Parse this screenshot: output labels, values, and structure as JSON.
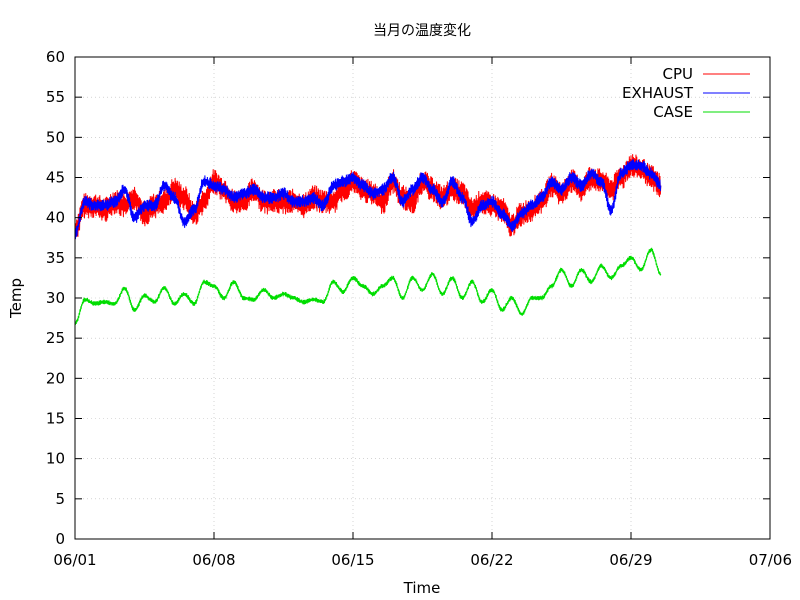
{
  "chart_data": {
    "type": "line",
    "title": "当月の温度変化",
    "xlabel": "Time",
    "ylabel": "Temp",
    "xlim": [
      "2024-06-01",
      "2024-07-06"
    ],
    "ylim": [
      0,
      60
    ],
    "x_ticks": [
      {
        "date": "2024-06-01",
        "label": "06/01"
      },
      {
        "date": "2024-06-08",
        "label": "06/08"
      },
      {
        "date": "2024-06-15",
        "label": "06/15"
      },
      {
        "date": "2024-06-22",
        "label": "06/22"
      },
      {
        "date": "2024-06-29",
        "label": "06/29"
      },
      {
        "date": "2024-07-06",
        "label": "07/06"
      }
    ],
    "y_ticks": [
      "0",
      "5",
      "10",
      "15",
      "20",
      "25",
      "30",
      "35",
      "40",
      "45",
      "50",
      "55",
      "60"
    ],
    "grid": true,
    "legend_position": "top-right",
    "series": [
      {
        "name": "CPU",
        "color": "#ff0000",
        "x": [
          "2024-06-01",
          "2024-06-01T12:00",
          "2024-06-02",
          "2024-06-02T12:00",
          "2024-06-03",
          "2024-06-03T12:00",
          "2024-06-04",
          "2024-06-04T12:00",
          "2024-06-05",
          "2024-06-05T12:00",
          "2024-06-06",
          "2024-06-06T12:00",
          "2024-06-07",
          "2024-06-07T12:00",
          "2024-06-08",
          "2024-06-08T12:00",
          "2024-06-09",
          "2024-06-09T12:00",
          "2024-06-10",
          "2024-06-10T12:00",
          "2024-06-11",
          "2024-06-11T12:00",
          "2024-06-12",
          "2024-06-12T12:00",
          "2024-06-13",
          "2024-06-13T12:00",
          "2024-06-14",
          "2024-06-14T12:00",
          "2024-06-15",
          "2024-06-15T12:00",
          "2024-06-16",
          "2024-06-16T12:00",
          "2024-06-17",
          "2024-06-17T12:00",
          "2024-06-18",
          "2024-06-18T12:00",
          "2024-06-19",
          "2024-06-19T12:00",
          "2024-06-20",
          "2024-06-20T12:00",
          "2024-06-21",
          "2024-06-21T12:00",
          "2024-06-22",
          "2024-06-22T12:00",
          "2024-06-23",
          "2024-06-23T12:00",
          "2024-06-24",
          "2024-06-24T12:00",
          "2024-06-25",
          "2024-06-25T12:00",
          "2024-06-26",
          "2024-06-26T12:00",
          "2024-06-27",
          "2024-06-27T12:00",
          "2024-06-28",
          "2024-06-28T12:00",
          "2024-06-29",
          "2024-06-29T12:00",
          "2024-06-30",
          "2024-06-30T12:00"
        ],
        "values": [
          38.5,
          41.5,
          41.5,
          41.0,
          42.0,
          41.5,
          42.5,
          40.5,
          41.5,
          42.0,
          43.5,
          42.5,
          40.5,
          42.0,
          44.5,
          43.5,
          42.0,
          42.0,
          43.5,
          42.0,
          42.0,
          42.0,
          42.0,
          41.5,
          42.5,
          42.0,
          42.0,
          43.5,
          44.5,
          43.5,
          43.0,
          42.0,
          44.5,
          42.5,
          42.0,
          44.5,
          43.5,
          42.5,
          43.5,
          43.0,
          41.0,
          42.0,
          41.5,
          41.0,
          39.0,
          40.5,
          41.0,
          42.0,
          44.0,
          43.0,
          44.5,
          43.5,
          45.0,
          44.5,
          43.5,
          45.0,
          46.5,
          46.0,
          45.0,
          44.0
        ],
        "spread": 1.6
      },
      {
        "name": "EXHAUST",
        "color": "#0000ff",
        "x": [
          "2024-06-01",
          "2024-06-01T12:00",
          "2024-06-02",
          "2024-06-02T12:00",
          "2024-06-03",
          "2024-06-03T12:00",
          "2024-06-04",
          "2024-06-04T12:00",
          "2024-06-05",
          "2024-06-05T12:00",
          "2024-06-06",
          "2024-06-06T12:00",
          "2024-06-07",
          "2024-06-07T12:00",
          "2024-06-08",
          "2024-06-08T12:00",
          "2024-06-09",
          "2024-06-09T12:00",
          "2024-06-10",
          "2024-06-10T12:00",
          "2024-06-11",
          "2024-06-11T12:00",
          "2024-06-12",
          "2024-06-12T12:00",
          "2024-06-13",
          "2024-06-13T12:00",
          "2024-06-14",
          "2024-06-14T12:00",
          "2024-06-15",
          "2024-06-15T12:00",
          "2024-06-16",
          "2024-06-16T12:00",
          "2024-06-17",
          "2024-06-17T12:00",
          "2024-06-18",
          "2024-06-18T12:00",
          "2024-06-19",
          "2024-06-19T12:00",
          "2024-06-20",
          "2024-06-20T12:00",
          "2024-06-21",
          "2024-06-21T12:00",
          "2024-06-22",
          "2024-06-22T12:00",
          "2024-06-23",
          "2024-06-23T12:00",
          "2024-06-24",
          "2024-06-24T12:00",
          "2024-06-25",
          "2024-06-25T12:00",
          "2024-06-26",
          "2024-06-26T12:00",
          "2024-06-27",
          "2024-06-27T12:00",
          "2024-06-28",
          "2024-06-28T12:00",
          "2024-06-29",
          "2024-06-29T12:00",
          "2024-06-30",
          "2024-06-30T12:00"
        ],
        "values": [
          38.0,
          42.0,
          41.5,
          41.5,
          42.0,
          43.5,
          40.0,
          41.5,
          41.5,
          44.0,
          42.5,
          39.5,
          41.0,
          44.5,
          44.0,
          43.5,
          42.5,
          43.0,
          43.5,
          42.5,
          42.5,
          43.0,
          42.0,
          42.0,
          42.5,
          41.5,
          44.0,
          44.5,
          45.0,
          44.0,
          43.0,
          43.5,
          45.0,
          42.0,
          43.5,
          45.0,
          43.5,
          42.0,
          44.5,
          42.5,
          39.5,
          41.5,
          42.0,
          40.5,
          39.0,
          40.5,
          41.5,
          42.5,
          44.5,
          43.5,
          45.0,
          44.0,
          45.5,
          44.5,
          41.0,
          45.5,
          46.5,
          46.5,
          45.5,
          44.0
        ],
        "spread": 0.8
      },
      {
        "name": "CASE",
        "color": "#00dd00",
        "x": [
          "2024-06-01",
          "2024-06-01T12:00",
          "2024-06-02",
          "2024-06-02T12:00",
          "2024-06-03",
          "2024-06-03T12:00",
          "2024-06-04",
          "2024-06-04T12:00",
          "2024-06-05",
          "2024-06-05T12:00",
          "2024-06-06",
          "2024-06-06T12:00",
          "2024-06-07",
          "2024-06-07T12:00",
          "2024-06-08",
          "2024-06-08T12:00",
          "2024-06-09",
          "2024-06-09T12:00",
          "2024-06-10",
          "2024-06-10T12:00",
          "2024-06-11",
          "2024-06-11T12:00",
          "2024-06-12",
          "2024-06-12T12:00",
          "2024-06-13",
          "2024-06-13T12:00",
          "2024-06-14",
          "2024-06-14T12:00",
          "2024-06-15",
          "2024-06-15T12:00",
          "2024-06-16",
          "2024-06-16T12:00",
          "2024-06-17",
          "2024-06-17T12:00",
          "2024-06-18",
          "2024-06-18T12:00",
          "2024-06-19",
          "2024-06-19T12:00",
          "2024-06-20",
          "2024-06-20T12:00",
          "2024-06-21",
          "2024-06-21T12:00",
          "2024-06-22",
          "2024-06-22T12:00",
          "2024-06-23",
          "2024-06-23T12:00",
          "2024-06-24",
          "2024-06-24T12:00",
          "2024-06-25",
          "2024-06-25T12:00",
          "2024-06-26",
          "2024-06-26T12:00",
          "2024-06-27",
          "2024-06-27T12:00",
          "2024-06-28",
          "2024-06-28T12:00",
          "2024-06-29",
          "2024-06-29T12:00",
          "2024-06-30",
          "2024-06-30T12:00"
        ],
        "values": [
          26.8,
          29.8,
          29.3,
          29.5,
          29.3,
          31.2,
          28.5,
          30.3,
          29.5,
          31.3,
          29.3,
          30.5,
          29.3,
          32.0,
          31.5,
          30.0,
          32.0,
          30.0,
          29.8,
          31.0,
          30.0,
          30.5,
          30.0,
          29.5,
          29.8,
          29.5,
          32.0,
          30.8,
          32.5,
          31.5,
          30.5,
          31.5,
          32.5,
          30.0,
          32.5,
          31.0,
          33.0,
          30.5,
          32.5,
          30.0,
          32.0,
          29.5,
          31.0,
          28.5,
          30.0,
          28.0,
          30.0,
          30.0,
          31.5,
          33.5,
          31.5,
          33.5,
          32.0,
          34.0,
          32.5,
          34.0,
          35.0,
          33.5,
          36.0,
          33.0
        ],
        "spread": 0.3
      }
    ]
  }
}
